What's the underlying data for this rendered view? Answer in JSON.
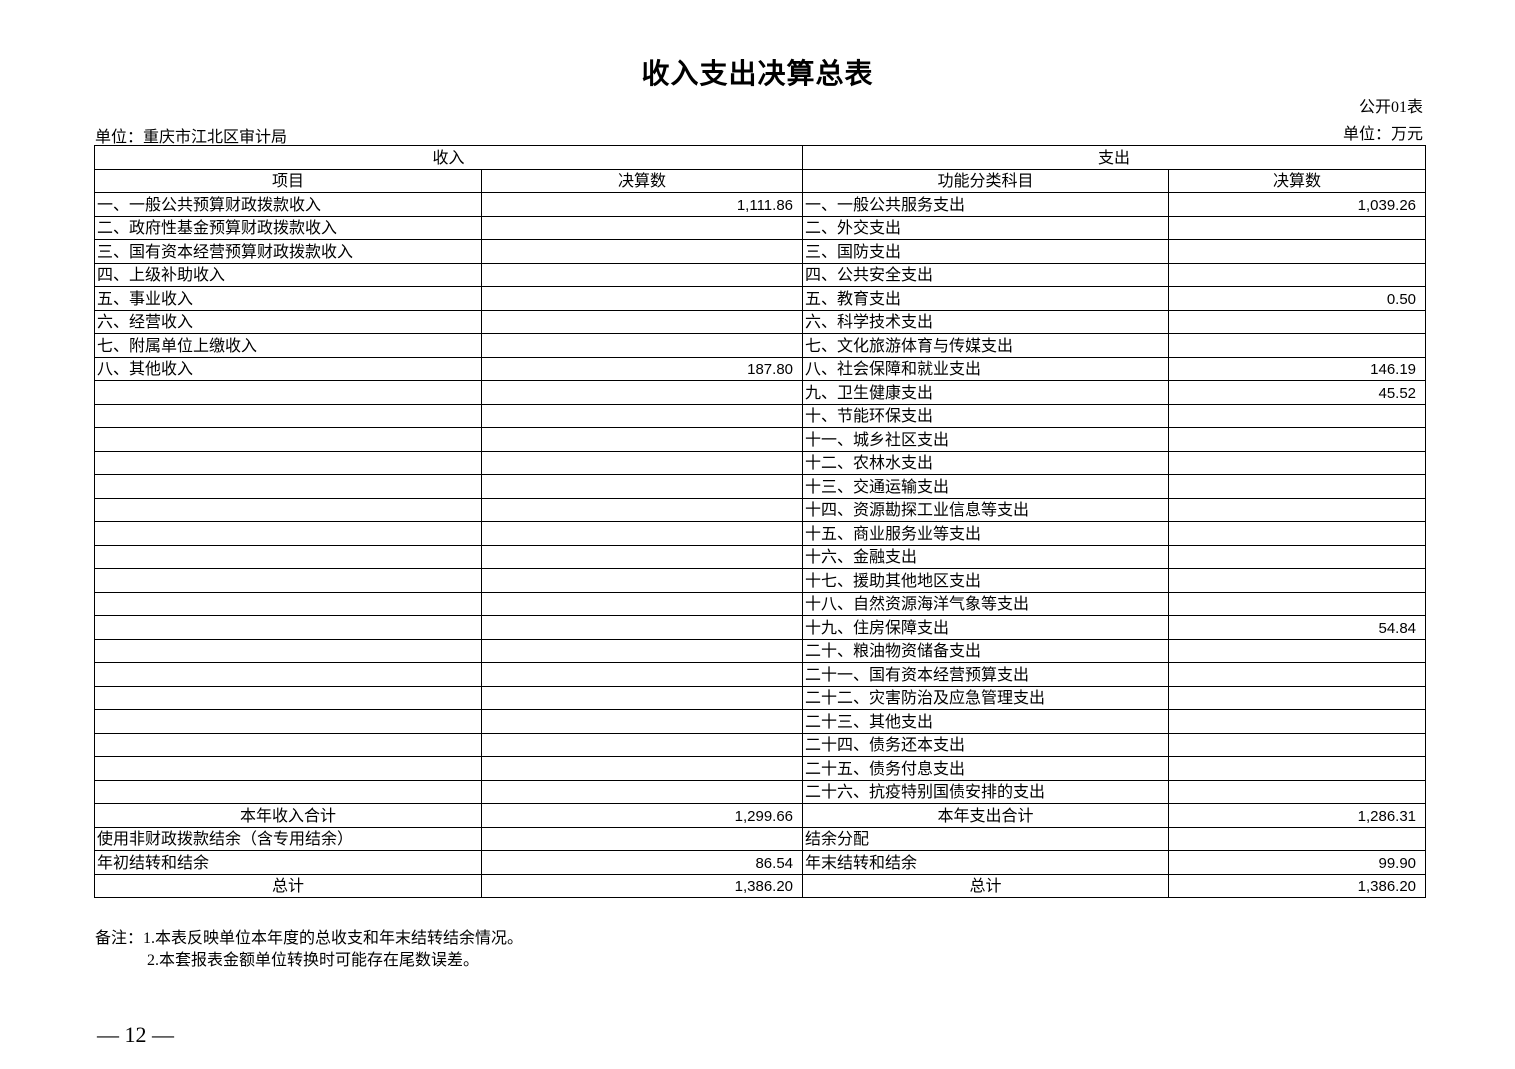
{
  "title": "收入支出决算总表",
  "form_no": "公开01表",
  "unit_org": "单位：重庆市江北区审计局",
  "unit_currency": "单位：万元",
  "header": {
    "income": "收入",
    "expense": "支出",
    "item": "项目",
    "amount": "决算数",
    "category": "功能分类科目",
    "amount2": "决算数"
  },
  "rows": [
    {
      "l": "一、一般公共预算财政拨款收入",
      "lv": "1,111.86",
      "r": "一、一般公共服务支出",
      "rv": "1,039.26"
    },
    {
      "l": "二、政府性基金预算财政拨款收入",
      "lv": "",
      "r": "二、外交支出",
      "rv": ""
    },
    {
      "l": "三、国有资本经营预算财政拨款收入",
      "lv": "",
      "r": "三、国防支出",
      "rv": ""
    },
    {
      "l": "四、上级补助收入",
      "lv": "",
      "r": "四、公共安全支出",
      "rv": ""
    },
    {
      "l": "五、事业收入",
      "lv": "",
      "r": "五、教育支出",
      "rv": "0.50"
    },
    {
      "l": "六、经营收入",
      "lv": "",
      "r": "六、科学技术支出",
      "rv": ""
    },
    {
      "l": "七、附属单位上缴收入",
      "lv": "",
      "r": "七、文化旅游体育与传媒支出",
      "rv": ""
    },
    {
      "l": "八、其他收入",
      "lv": "187.80",
      "r": "八、社会保障和就业支出",
      "rv": "146.19"
    },
    {
      "l": "",
      "lv": "",
      "r": "九、卫生健康支出",
      "rv": "45.52"
    },
    {
      "l": "",
      "lv": "",
      "r": "十、节能环保支出",
      "rv": ""
    },
    {
      "l": "",
      "lv": "",
      "r": "十一、城乡社区支出",
      "rv": ""
    },
    {
      "l": "",
      "lv": "",
      "r": "十二、农林水支出",
      "rv": ""
    },
    {
      "l": "",
      "lv": "",
      "r": "十三、交通运输支出",
      "rv": ""
    },
    {
      "l": "",
      "lv": "",
      "r": "十四、资源勘探工业信息等支出",
      "rv": ""
    },
    {
      "l": "",
      "lv": "",
      "r": "十五、商业服务业等支出",
      "rv": ""
    },
    {
      "l": "",
      "lv": "",
      "r": "十六、金融支出",
      "rv": ""
    },
    {
      "l": "",
      "lv": "",
      "r": "十七、援助其他地区支出",
      "rv": ""
    },
    {
      "l": "",
      "lv": "",
      "r": "十八、自然资源海洋气象等支出",
      "rv": ""
    },
    {
      "l": "",
      "lv": "",
      "r": "十九、住房保障支出",
      "rv": "54.84"
    },
    {
      "l": "",
      "lv": "",
      "r": "二十、粮油物资储备支出",
      "rv": ""
    },
    {
      "l": "",
      "lv": "",
      "r": "二十一、国有资本经营预算支出",
      "rv": ""
    },
    {
      "l": "",
      "lv": "",
      "r": "二十二、灾害防治及应急管理支出",
      "rv": ""
    },
    {
      "l": "",
      "lv": "",
      "r": "二十三、其他支出",
      "rv": ""
    },
    {
      "l": "",
      "lv": "",
      "r": "二十四、债务还本支出",
      "rv": ""
    },
    {
      "l": "",
      "lv": "",
      "r": "二十五、债务付息支出",
      "rv": ""
    },
    {
      "l": "",
      "lv": "",
      "r": "二十六、抗疫特别国债安排的支出",
      "rv": ""
    },
    {
      "l": "本年收入合计",
      "lv": "1,299.66",
      "r": "本年支出合计",
      "rv": "1,286.31",
      "kind": "total"
    },
    {
      "l": "使用非财政拨款结余（含专用结余）",
      "lv": "",
      "r": "结余分配",
      "rv": ""
    },
    {
      "l": "年初结转和结余",
      "lv": "86.54",
      "r": "年末结转和结余",
      "rv": "99.90"
    },
    {
      "l": "总计",
      "lv": "1,386.20",
      "r": "总计",
      "rv": "1,386.20",
      "kind": "total"
    }
  ],
  "notes": [
    "备注：1.本表反映单位本年度的总收支和年末结转结余情况。",
    "2.本套报表金额单位转换时可能存在尾数误差。"
  ],
  "page_number": "— 12 —"
}
